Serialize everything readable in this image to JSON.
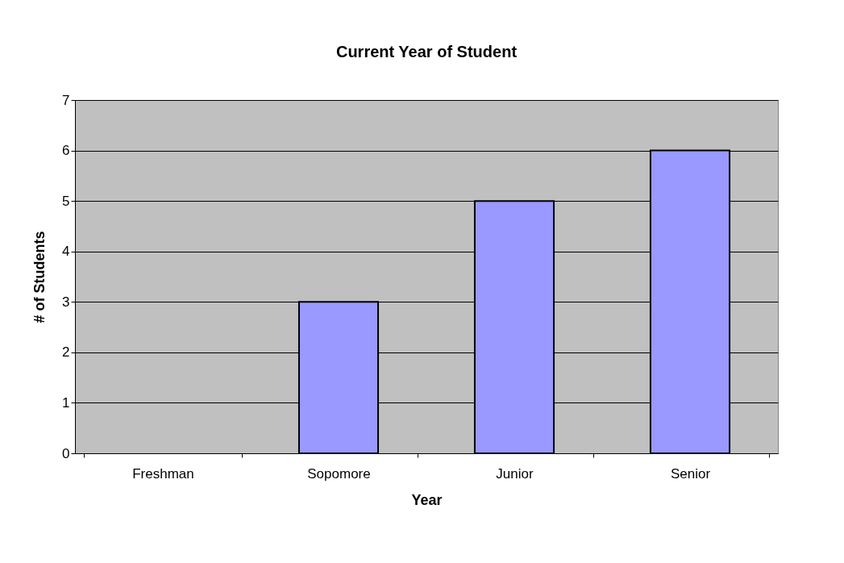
{
  "chart_data": {
    "type": "bar",
    "title": "Current Year of Student",
    "xlabel": "Year",
    "ylabel": "# of Students",
    "categories": [
      "Freshman",
      "Sopomore",
      "Junior",
      "Senior"
    ],
    "values": [
      0,
      3,
      5,
      6
    ],
    "color": "#9999ff",
    "ylim": [
      0,
      7
    ],
    "yticks": [
      0,
      1,
      2,
      3,
      4,
      5,
      6,
      7
    ],
    "grid": "y"
  }
}
